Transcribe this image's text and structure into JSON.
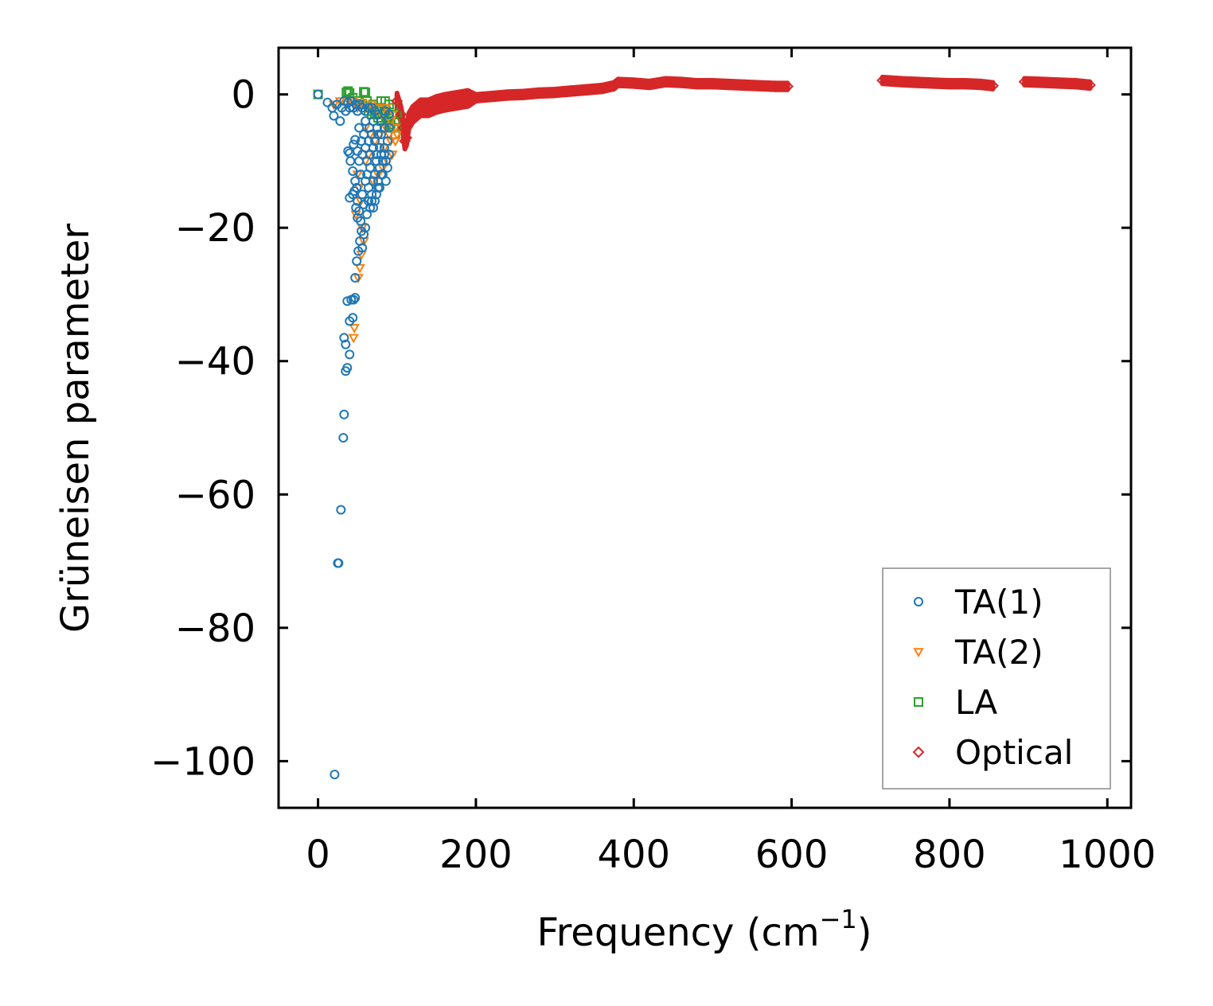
{
  "chart_data": {
    "type": "scatter",
    "xlabel": "Frequency (cm",
    "xlabel_sup": "−1",
    "xlabel_suffix": ")",
    "ylabel": "Grüneisen parameter",
    "xlim": [
      -50,
      1030
    ],
    "ylim": [
      -107,
      7
    ],
    "x_ticks": [
      0,
      200,
      400,
      600,
      800,
      1000
    ],
    "x_tick_labels": [
      "0",
      "200",
      "400",
      "600",
      "800",
      "1000"
    ],
    "y_ticks": [
      0,
      -20,
      -40,
      -60,
      -80,
      -100
    ],
    "y_tick_labels": [
      "0",
      "−20",
      "−40",
      "−60",
      "−80",
      "−100"
    ],
    "legend_position": "bottom-right",
    "series": [
      {
        "name": "TA(1)",
        "marker": "circle",
        "color": "#1f77b4",
        "points": [
          [
            0,
            0
          ],
          [
            12,
            -1.2
          ],
          [
            18,
            -2
          ],
          [
            20,
            -3.2
          ],
          [
            24,
            -1.5
          ],
          [
            28,
            -4
          ],
          [
            30,
            -2
          ],
          [
            33,
            -1
          ],
          [
            35,
            -2.5
          ],
          [
            38,
            -1.2
          ],
          [
            40,
            -2
          ],
          [
            42,
            -1
          ],
          [
            45,
            -2
          ],
          [
            48,
            -1.5
          ],
          [
            50,
            -2.5
          ],
          [
            53,
            -1.5
          ],
          [
            56,
            -2
          ],
          [
            60,
            -2.5
          ],
          [
            64,
            -2
          ],
          [
            68,
            -2
          ],
          [
            72,
            -2.5
          ],
          [
            76,
            -3
          ],
          [
            80,
            -4
          ],
          [
            85,
            -2.5
          ],
          [
            90,
            -3
          ],
          [
            38,
            -8.5
          ],
          [
            40,
            -8.8
          ],
          [
            41,
            -10
          ],
          [
            45,
            -7.5
          ],
          [
            47,
            -6.8
          ],
          [
            50,
            -8.5
          ],
          [
            52,
            -10
          ],
          [
            44,
            -11.5
          ],
          [
            47,
            -13
          ],
          [
            49,
            -14
          ],
          [
            50,
            -16
          ],
          [
            52,
            -17.5
          ],
          [
            54,
            -19
          ],
          [
            55,
            -20.5
          ],
          [
            53,
            -22
          ],
          [
            51,
            -23.5
          ],
          [
            49,
            -25
          ],
          [
            47,
            -27.5
          ],
          [
            45,
            -30.8
          ],
          [
            47,
            -30.5
          ],
          [
            37,
            -31
          ],
          [
            42,
            -30.8
          ],
          [
            40,
            -34
          ],
          [
            44,
            -33.5
          ],
          [
            33,
            -36.5
          ],
          [
            35,
            -37.5
          ],
          [
            40,
            -39
          ],
          [
            35,
            -41.5
          ],
          [
            37,
            -41
          ],
          [
            33,
            -48
          ],
          [
            32,
            -51.5
          ],
          [
            29,
            -62.3
          ],
          [
            25,
            -70.3
          ],
          [
            26,
            -70.3
          ],
          [
            21,
            -102
          ],
          [
            40,
            -15.5
          ],
          [
            44,
            -15
          ],
          [
            46,
            -14.5
          ],
          [
            48,
            -17
          ],
          [
            50,
            -18.5
          ],
          [
            56,
            -15
          ],
          [
            58,
            -16.5
          ],
          [
            60,
            -13
          ],
          [
            62,
            -12
          ],
          [
            64,
            -14
          ],
          [
            66,
            -11
          ],
          [
            68,
            -15
          ],
          [
            70,
            -13
          ],
          [
            72,
            -12
          ],
          [
            74,
            -10
          ],
          [
            76,
            -14
          ],
          [
            78,
            -11
          ],
          [
            80,
            -9
          ],
          [
            82,
            -12
          ],
          [
            84,
            -8
          ],
          [
            86,
            -10
          ],
          [
            58,
            -6
          ],
          [
            60,
            -8
          ],
          [
            62,
            -10
          ],
          [
            64,
            -7
          ],
          [
            66,
            -9
          ],
          [
            68,
            -6
          ],
          [
            70,
            -8
          ],
          [
            72,
            -7
          ],
          [
            74,
            -9
          ],
          [
            76,
            -6
          ],
          [
            78,
            -8
          ],
          [
            54,
            -12
          ],
          [
            56,
            -9
          ],
          [
            52,
            -5
          ],
          [
            55,
            -7
          ],
          [
            60,
            -4
          ],
          [
            65,
            -5
          ],
          [
            70,
            -4
          ],
          [
            75,
            -5
          ],
          [
            80,
            -6
          ],
          [
            84,
            -5
          ],
          [
            88,
            -7
          ],
          [
            90,
            -5
          ],
          [
            62,
            -18
          ],
          [
            60,
            -20
          ],
          [
            58,
            -21
          ],
          [
            56,
            -23
          ],
          [
            64,
            -16
          ],
          [
            66,
            -17
          ],
          [
            68,
            -16
          ],
          [
            70,
            -17
          ],
          [
            72,
            -16
          ],
          [
            74,
            -15
          ],
          [
            76,
            -13
          ],
          [
            78,
            -14
          ],
          [
            80,
            -12
          ],
          [
            82,
            -10
          ],
          [
            84,
            -9
          ],
          [
            86,
            -13
          ],
          [
            88,
            -11
          ],
          [
            90,
            -9
          ]
        ]
      },
      {
        "name": "TA(2)",
        "marker": "triangle",
        "color": "#ff7f0e",
        "points": [
          [
            20,
            -1.5
          ],
          [
            28,
            -1
          ],
          [
            36,
            -1.5
          ],
          [
            44,
            -1
          ],
          [
            50,
            -2
          ],
          [
            56,
            -1.2
          ],
          [
            62,
            -2
          ],
          [
            68,
            -1.5
          ],
          [
            74,
            -2
          ],
          [
            80,
            -3
          ],
          [
            86,
            -2
          ],
          [
            92,
            -4
          ],
          [
            96,
            -3
          ],
          [
            98,
            -5
          ],
          [
            60,
            -5
          ],
          [
            66,
            -6
          ],
          [
            72,
            -7
          ],
          [
            78,
            -6
          ],
          [
            84,
            -8
          ],
          [
            90,
            -6
          ],
          [
            94,
            -9
          ],
          [
            88,
            -10
          ],
          [
            82,
            -11
          ],
          [
            76,
            -12
          ],
          [
            70,
            -13
          ],
          [
            50,
            -12
          ],
          [
            52,
            -14
          ],
          [
            54,
            -16
          ],
          [
            56,
            -20
          ],
          [
            58,
            -22
          ],
          [
            55,
            -24
          ],
          [
            53,
            -26
          ],
          [
            51,
            -27.5
          ],
          [
            46,
            -35
          ],
          [
            45,
            -36.5
          ],
          [
            48,
            -18
          ],
          [
            60,
            -10
          ],
          [
            64,
            -9
          ],
          [
            86,
            -5
          ],
          [
            92,
            -7
          ],
          [
            98,
            -7
          ],
          [
            100,
            -6
          ]
        ]
      },
      {
        "name": "LA",
        "marker": "square",
        "color": "#2ca02c",
        "points": [
          [
            0,
            0
          ],
          [
            36,
            0.3
          ],
          [
            38,
            0.5
          ],
          [
            40,
            0.2
          ],
          [
            58,
            0.4
          ],
          [
            60,
            0.3
          ],
          [
            44,
            -0.5
          ],
          [
            50,
            -1
          ],
          [
            56,
            -1.5
          ],
          [
            62,
            -1
          ],
          [
            66,
            -2
          ],
          [
            70,
            -1.5
          ],
          [
            74,
            -2.5
          ],
          [
            78,
            -2
          ],
          [
            82,
            -3
          ],
          [
            86,
            -2.5
          ],
          [
            90,
            -3.5
          ],
          [
            94,
            -3
          ],
          [
            98,
            -4
          ],
          [
            100,
            -3
          ],
          [
            96,
            -5
          ],
          [
            92,
            -4.5
          ],
          [
            88,
            -4
          ],
          [
            84,
            -5
          ],
          [
            80,
            -4
          ],
          [
            76,
            -3.5
          ],
          [
            72,
            -3
          ],
          [
            68,
            -3
          ],
          [
            64,
            -2.5
          ],
          [
            98,
            -6
          ],
          [
            100,
            -5
          ],
          [
            95,
            -2
          ],
          [
            90,
            -1.5
          ],
          [
            85,
            -1
          ],
          [
            80,
            -1
          ]
        ]
      },
      {
        "name": "Optical",
        "marker": "diamond",
        "color": "#d62728",
        "points": [
          [
            100,
            -1
          ],
          [
            105,
            -3
          ],
          [
            108,
            -5
          ],
          [
            110,
            -7
          ],
          [
            112,
            -6.5
          ],
          [
            115,
            -4
          ],
          [
            120,
            -3
          ],
          [
            125,
            -2.5
          ],
          [
            130,
            -2
          ],
          [
            140,
            -2
          ],
          [
            150,
            -1.5
          ],
          [
            160,
            -1.2
          ],
          [
            170,
            -1
          ],
          [
            180,
            -0.8
          ],
          [
            190,
            -0.6
          ],
          [
            200,
            -0.5
          ],
          [
            220,
            -0.3
          ],
          [
            240,
            -0.1
          ],
          [
            260,
            0
          ],
          [
            280,
            0.2
          ],
          [
            300,
            0.3
          ],
          [
            320,
            0.5
          ],
          [
            340,
            0.7
          ],
          [
            360,
            0.9
          ],
          [
            375,
            1.3
          ],
          [
            380,
            1.8
          ],
          [
            400,
            1.7
          ],
          [
            420,
            1.5
          ],
          [
            440,
            1.9
          ],
          [
            460,
            1.8
          ],
          [
            480,
            1.6
          ],
          [
            500,
            1.6
          ],
          [
            520,
            1.5
          ],
          [
            540,
            1.4
          ],
          [
            560,
            1.3
          ],
          [
            580,
            1.2
          ],
          [
            595,
            1.2
          ],
          [
            715,
            2.1
          ],
          [
            740,
            1.9
          ],
          [
            760,
            1.8
          ],
          [
            780,
            1.7
          ],
          [
            800,
            1.6
          ],
          [
            820,
            1.6
          ],
          [
            840,
            1.5
          ],
          [
            855,
            1.3
          ],
          [
            895,
            1.9
          ],
          [
            920,
            1.8
          ],
          [
            940,
            1.7
          ],
          [
            960,
            1.6
          ],
          [
            978,
            1.4
          ]
        ]
      }
    ]
  }
}
